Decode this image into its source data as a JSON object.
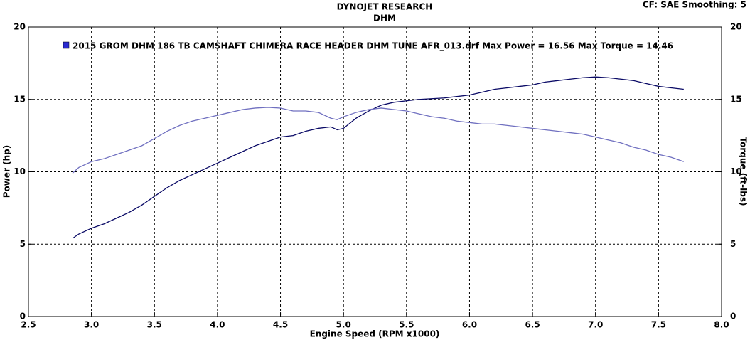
{
  "chart_data": {
    "type": "line",
    "title": "DYNOJET RESEARCH",
    "subtitle": "DHM",
    "corner_note": "CF: SAE  Smoothing: 5",
    "legend": "2015 GROM DHM 186 TB CAMSHAFT CHIMERA RACE HEADER DHM TUNE  AFR_013.drf Max Power = 16.56     Max Torque = 14.46",
    "legend_color": "#2a2ad0",
    "x_label": "Engine Speed (RPM x1000)",
    "y_label": "Power (hp)",
    "y2_label": "Torque (ft-lbs)",
    "x": [
      2.85,
      2.9,
      3.0,
      3.1,
      3.2,
      3.3,
      3.4,
      3.5,
      3.6,
      3.7,
      3.8,
      3.9,
      4.0,
      4.1,
      4.2,
      4.3,
      4.4,
      4.5,
      4.6,
      4.7,
      4.8,
      4.9,
      4.95,
      5.0,
      5.1,
      5.2,
      5.3,
      5.4,
      5.5,
      5.6,
      5.7,
      5.8,
      5.9,
      6.0,
      6.1,
      6.2,
      6.3,
      6.4,
      6.5,
      6.6,
      6.7,
      6.8,
      6.9,
      7.0,
      7.1,
      7.2,
      7.3,
      7.4,
      7.5,
      7.6,
      7.7
    ],
    "series": [
      {
        "color": "#0a0a66",
        "values": [
          5.4,
          5.7,
          6.1,
          6.4,
          6.8,
          7.2,
          7.7,
          8.3,
          8.9,
          9.4,
          9.8,
          10.2,
          10.6,
          11.0,
          11.4,
          11.8,
          12.1,
          12.4,
          12.5,
          12.8,
          13.0,
          13.1,
          12.9,
          13.0,
          13.7,
          14.2,
          14.6,
          14.8,
          14.9,
          15.0,
          15.05,
          15.1,
          15.2,
          15.3,
          15.5,
          15.7,
          15.8,
          15.9,
          16.0,
          16.2,
          16.3,
          16.4,
          16.5,
          16.55,
          16.5,
          16.4,
          16.3,
          16.1,
          15.9,
          15.8,
          15.7
        ]
      },
      {
        "color": "#7070c0",
        "axis": "y2",
        "values": [
          9.9,
          10.3,
          10.7,
          10.9,
          11.2,
          11.5,
          11.8,
          12.3,
          12.8,
          13.2,
          13.5,
          13.7,
          13.9,
          14.1,
          14.3,
          14.4,
          14.45,
          14.4,
          14.2,
          14.2,
          14.1,
          13.7,
          13.6,
          13.8,
          14.1,
          14.3,
          14.4,
          14.3,
          14.2,
          14.0,
          13.8,
          13.7,
          13.5,
          13.4,
          13.3,
          13.3,
          13.2,
          13.1,
          13.0,
          12.9,
          12.8,
          12.7,
          12.6,
          12.4,
          12.2,
          12.0,
          11.7,
          11.5,
          11.2,
          11.0,
          10.7
        ]
      }
    ],
    "xlim": [
      2.5,
      8.0
    ],
    "xticks": [
      {
        "value": 2.5,
        "label": "2.5"
      },
      {
        "value": 3.0,
        "label": "3.0"
      },
      {
        "value": 3.5,
        "label": "3.5"
      },
      {
        "value": 4.0,
        "label": "4.0"
      },
      {
        "value": 4.5,
        "label": "4.5"
      },
      {
        "value": 5.0,
        "label": "5.0"
      },
      {
        "value": 5.5,
        "label": "5.5"
      },
      {
        "value": 6.0,
        "label": "6.0"
      },
      {
        "value": 6.5,
        "label": "6.5"
      },
      {
        "value": 7.0,
        "label": "7.0"
      },
      {
        "value": 7.5,
        "label": "7.5"
      },
      {
        "value": 8.0,
        "label": "8.0"
      }
    ],
    "ylim": [
      0,
      20
    ],
    "yticks": [
      0,
      5,
      10,
      15,
      20
    ],
    "y2lim": [
      0,
      20
    ],
    "y2ticks": [
      0,
      5,
      10,
      15,
      20
    ],
    "grid": true
  }
}
